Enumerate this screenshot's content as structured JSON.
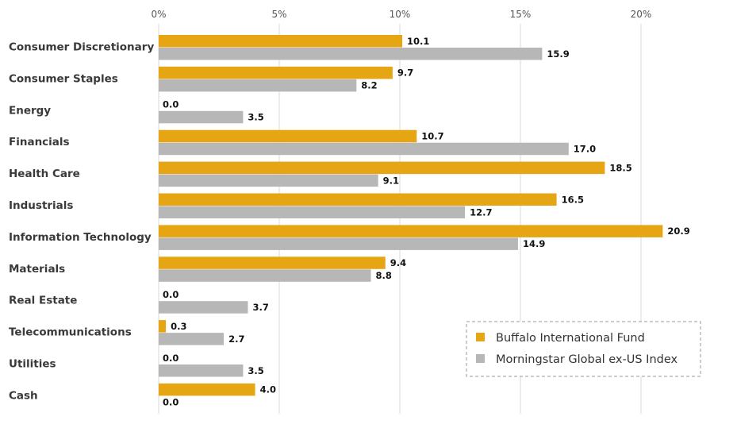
{
  "chart_data": {
    "type": "bar",
    "orientation": "horizontal",
    "categories": [
      "Consumer Discretionary",
      "Consumer Staples",
      "Energy",
      "Financials",
      "Health Care",
      "Industrials",
      "Information Technology",
      "Materials",
      "Real Estate",
      "Telecommunications",
      "Utilities",
      "Cash"
    ],
    "series": [
      {
        "name": "Buffalo International Fund",
        "color": "#e6a513",
        "values": [
          10.1,
          9.7,
          0.0,
          10.7,
          18.5,
          16.5,
          20.9,
          9.4,
          0.0,
          0.3,
          0.0,
          4.0
        ],
        "labels": [
          "10.1",
          "9.7",
          "0.0",
          "10.7",
          "18.5",
          "16.5",
          "20.9",
          "9.4",
          "0.0",
          "0.3",
          "0.0",
          "4.0"
        ]
      },
      {
        "name": "Morningstar Global ex-US Index",
        "color": "#b7b7b7",
        "values": [
          15.9,
          8.2,
          3.5,
          17.0,
          9.1,
          12.7,
          14.9,
          8.8,
          3.7,
          2.7,
          3.5,
          0.0
        ],
        "labels": [
          "15.9",
          "8.2",
          "3.5",
          "17.0",
          "9.1",
          "12.7",
          "14.9",
          "8.8",
          "3.7",
          "2.7",
          "3.5",
          "0.0"
        ]
      }
    ],
    "x_ticks": [
      0,
      5,
      10,
      15,
      20
    ],
    "x_tick_labels": [
      "0%",
      "5%",
      "10%",
      "15%",
      "20%"
    ],
    "xlim": [
      0,
      22.5
    ],
    "grid": true,
    "gridline_color": "#d9d9d9",
    "legend_position": "bottom-right",
    "legend_border_color": "#999999"
  }
}
